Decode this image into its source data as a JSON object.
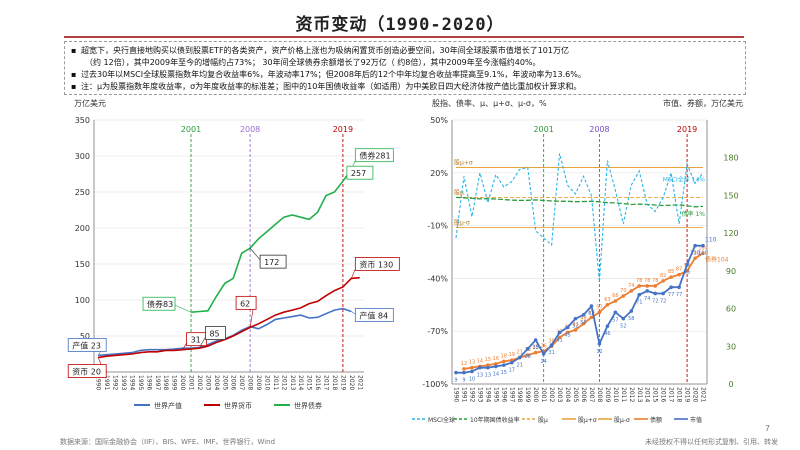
{
  "title": "资币变动（1990-2020）",
  "notes": [
    "超宽下，央行直接地购买以债到股票ETF的各类资产，资产价格上涨也为吸纳闲置货币创造必要空间，30年间全球股票市值增长了101万亿",
    "（约 12倍），其中2009年至今的增幅约占73%；  30年间全球债券余额增长了92万亿（ 约8倍），其中2009年至今涨幅约40%。",
    "过去30年以MSCI全球股票指数年均复合收益率6%，年波动率17%；但2008年后的12个中年均复合收益率提高至9.1%，年波动率为13.6%。",
    "注：μ为股票指数年度收益率，σ为年度收益率的标准差；图中的10年国债收益率（如适用）为中美欧日四大经济体按产值比重加权计算求和。"
  ],
  "source": "数据来源：国际金融协会（IIF）、BIS、WFE、IMF、世界银行，Wind",
  "rights": "未经授权不得以任何形式复制、引用、转发",
  "page_number": "7",
  "colors": {
    "gdp": "#4472c4",
    "money": "#c00000",
    "bond": "#22b04c",
    "msci": "#29b5e8",
    "yield10": "#2a9d3a",
    "band": "#e8a33a",
    "bond_bar": "#ed7d31",
    "stock_bar": "#4472c4",
    "title_rule": "#b04040"
  },
  "chart_data": [
    {
      "type": "line",
      "ylabel": "万亿美元",
      "ylim": [
        0,
        350
      ],
      "yticks": [
        0,
        50,
        100,
        150,
        200,
        250,
        300,
        350
      ],
      "x": [
        1990,
        1991,
        1992,
        1993,
        1994,
        1995,
        1996,
        1997,
        1998,
        1999,
        2000,
        2001,
        2002,
        2003,
        2004,
        2005,
        2006,
        2007,
        2008,
        2009,
        2010,
        2011,
        2012,
        2013,
        2014,
        2015,
        2016,
        2017,
        2018,
        2019,
        2020,
        2021
      ],
      "xtick_labels": [
        "1990",
        "1991",
        "1992",
        "1993",
        "1994",
        "1995",
        "1996",
        "1997",
        "1998",
        "1999",
        "2000",
        "2001",
        "2002",
        "2003",
        "2004",
        "2005",
        "2006",
        "2007",
        "2008",
        "2009",
        "2010",
        "2011",
        "2012",
        "2013",
        "2014",
        "2015",
        "2016",
        "2017",
        "2018",
        "2019",
        "2020",
        "2021"
      ],
      "series": [
        {
          "name": "世界产值",
          "values": [
            23,
            24,
            25,
            26,
            27,
            30,
            31,
            31,
            31,
            32,
            33,
            33,
            34,
            38,
            43,
            46,
            51,
            58,
            63,
            60,
            66,
            73,
            75,
            77,
            79,
            75,
            76,
            81,
            86,
            88,
            84,
            null
          ]
        },
        {
          "name": "世界货币",
          "values": [
            20,
            22,
            23,
            24,
            25,
            27,
            28,
            28,
            30,
            30,
            31,
            32,
            33,
            36,
            41,
            45,
            50,
            56,
            62,
            67,
            73,
            79,
            83,
            86,
            89,
            95,
            98,
            106,
            113,
            118,
            130,
            131
          ]
        },
        {
          "name": "世界债券",
          "values": [
            null,
            null,
            null,
            null,
            null,
            null,
            null,
            null,
            null,
            null,
            null,
            83,
            84,
            85,
            105,
            123,
            130,
            165,
            172,
            185,
            195,
            205,
            215,
            218,
            215,
            212,
            222,
            245,
            250,
            265,
            281,
            281
          ]
        }
      ],
      "annotations": [
        {
          "year": 2001,
          "label": "2001"
        },
        {
          "year": 2008,
          "label": "2008"
        },
        {
          "year": 2019,
          "label": "2019"
        }
      ],
      "callouts": [
        {
          "text": "产值 23"
        },
        {
          "text": "资币 20"
        },
        {
          "text": "31"
        },
        {
          "text": "债券83"
        },
        {
          "text": "85"
        },
        {
          "text": "62"
        },
        {
          "text": "172"
        },
        {
          "text": "债券281"
        },
        {
          "text": "257"
        },
        {
          "text": "资币 130"
        },
        {
          "text": "产值 84"
        }
      ],
      "legend": [
        "世界产值",
        "世界货币",
        "世界债券"
      ],
      "legend_position": "bottom"
    },
    {
      "type": "line",
      "ylabel_left": "股指、债率、μ、μ+σ、μ-σ，%",
      "ylabel_right": "市值、券额，万亿美元",
      "ylim_left": [
        -100,
        50
      ],
      "yticks_left": [
        "-100%",
        "-70%",
        "-40%",
        "-10%",
        "20%",
        "50%"
      ],
      "ylim_right": [
        0,
        210
      ],
      "yticks_right": [
        0,
        30,
        60,
        90,
        120,
        150,
        180
      ],
      "x": [
        1990,
        1991,
        1992,
        1993,
        1994,
        1995,
        1996,
        1997,
        1998,
        1999,
        2000,
        2001,
        2002,
        2003,
        2004,
        2005,
        2006,
        2007,
        2008,
        2009,
        2010,
        2011,
        2012,
        2013,
        2014,
        2015,
        2016,
        2017,
        2018,
        2019,
        2020,
        2021
      ],
      "xtick_labels": [
        "1990",
        "1991",
        "1992",
        "1993",
        "1994",
        "1995",
        "1996",
        "1997",
        "1998",
        "1999",
        "2000",
        "2001",
        "2002",
        "2003",
        "2004",
        "2005",
        "2006",
        "2007",
        "2008",
        "2009",
        "2010",
        "2011",
        "2012",
        "2013",
        "2014",
        "2015",
        "2016",
        "2017",
        "2018",
        "2019",
        "2020",
        "2021"
      ],
      "series": [
        {
          "name": "MSCI全球",
          "axis": "left",
          "values": [
            -17,
            18,
            -5,
            20,
            3,
            19,
            12,
            15,
            22,
            23,
            -13,
            -17,
            -21,
            31,
            13,
            8,
            18,
            7,
            -42,
            27,
            10,
            -9,
            13,
            21,
            2,
            -2,
            6,
            20,
            -9,
            25,
            14,
            20
          ]
        },
        {
          "name": "10年期国债收益率",
          "axis": "left",
          "values": [
            6,
            5.8,
            5.5,
            5.2,
            5.3,
            5.1,
            4.8,
            4.5,
            4.3,
            4.4,
            4.6,
            4.3,
            4,
            3.8,
            3.8,
            3.6,
            3.7,
            3.8,
            3.5,
            3,
            2.9,
            2.5,
            2,
            2.2,
            2,
            1.7,
            1.4,
            1.6,
            1.8,
            1.2,
            0.7,
            0.9
          ]
        },
        {
          "name": "股μ",
          "axis": "left",
          "values": [
            6,
            6,
            6,
            6,
            6,
            6,
            6,
            6,
            6,
            6,
            6,
            6,
            6,
            6,
            6,
            6,
            6,
            6,
            6,
            6,
            6,
            6,
            6,
            6,
            6,
            6,
            6,
            6,
            6,
            6,
            6,
            6
          ]
        },
        {
          "name": "股μ+σ",
          "axis": "left",
          "values": [
            23,
            23,
            23,
            23,
            23,
            23,
            23,
            23,
            23,
            23,
            23,
            23,
            23,
            23,
            23,
            23,
            23,
            23,
            23,
            23,
            23,
            23,
            23,
            23,
            23,
            23,
            23,
            23,
            23,
            23,
            23,
            23
          ]
        },
        {
          "name": "股μ-σ",
          "axis": "left",
          "values": [
            -11,
            -11,
            -11,
            -11,
            -11,
            -11,
            -11,
            -11,
            -11,
            -11,
            -11,
            -11,
            -11,
            -11,
            -11,
            -11,
            -11,
            -11,
            -11,
            -11,
            -11,
            -11,
            -11,
            -11,
            -11,
            -11,
            -11,
            -11,
            -11,
            -11,
            -11,
            -11
          ]
        },
        {
          "name": "债额",
          "axis": "right",
          "values": [
            null,
            12,
            13,
            14,
            15,
            16,
            18,
            19,
            21,
            23,
            25,
            26,
            30,
            37,
            41,
            43,
            48,
            53,
            57,
            63,
            66,
            70,
            74,
            78,
            78,
            78,
            82,
            85,
            87,
            90,
            100,
            104
          ]
        },
        {
          "name": "市值",
          "axis": "right",
          "values": [
            9,
            9,
            10,
            13,
            13,
            14,
            15,
            17,
            21,
            28,
            35,
            24,
            31,
            41,
            45,
            52,
            55,
            62,
            32,
            46,
            57,
            52,
            58,
            71,
            74,
            72,
            72,
            77,
            77,
            95,
            110,
            110
          ]
        }
      ],
      "annotations": [
        {
          "year": 2001,
          "label": "2001"
        },
        {
          "year": 2008,
          "label": "2008"
        },
        {
          "year": 2019,
          "label": "2019"
        }
      ],
      "band_labels": {
        "mu_plus": "股μ+σ",
        "mu": "股μ",
        "mu_minus": "股μ-σ",
        "msci_end": "MSCI全球 14%",
        "yield_end": "债率 1%"
      },
      "callouts": [
        {
          "text": "110"
        },
        {
          "text": "债券104"
        }
      ],
      "legend": [
        "MSCI全球",
        "10年期国债收益率",
        "股μ",
        "股μ+σ",
        "股μ-σ",
        "债额",
        "市值"
      ],
      "legend_position": "bottom"
    }
  ]
}
